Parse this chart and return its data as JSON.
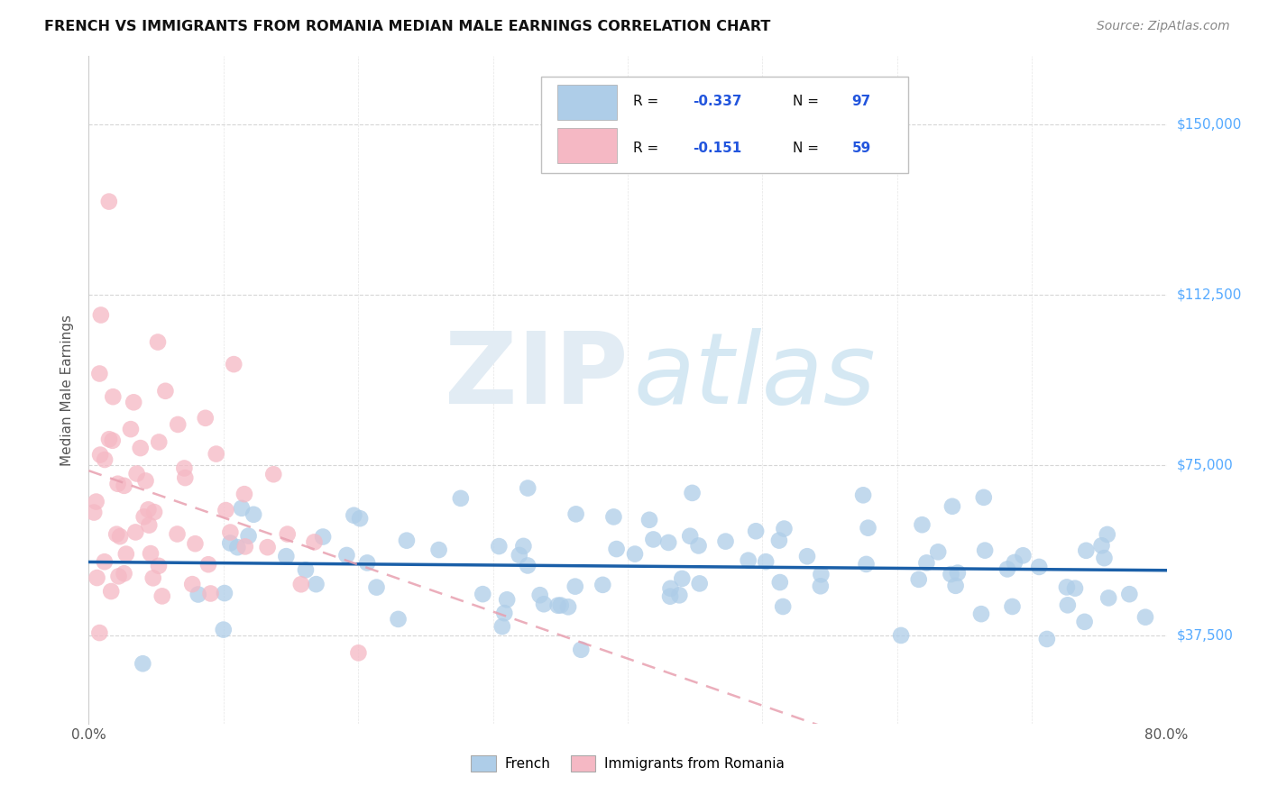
{
  "title": "FRENCH VS IMMIGRANTS FROM ROMANIA MEDIAN MALE EARNINGS CORRELATION CHART",
  "source": "Source: ZipAtlas.com",
  "ylabel": "Median Male Earnings",
  "xlim": [
    0.0,
    0.8
  ],
  "ylim": [
    18000,
    165000
  ],
  "yticks": [
    37500,
    75000,
    112500,
    150000
  ],
  "ytick_labels": [
    "$37,500",
    "$75,000",
    "$112,500",
    "$150,000"
  ],
  "xtick_positions": [
    0.0,
    0.1,
    0.2,
    0.3,
    0.4,
    0.5,
    0.6,
    0.7,
    0.8
  ],
  "xtick_labels": [
    "0.0%",
    "",
    "",
    "",
    "",
    "",
    "",
    "",
    "80.0%"
  ],
  "legend_r_french": "-0.337",
  "legend_n_french": "97",
  "legend_r_romania": "-0.151",
  "legend_n_romania": "59",
  "french_color": "#aecde8",
  "romania_color": "#f5b8c4",
  "french_line_color": "#1a5fa8",
  "romania_line_color": "#e8a0b0",
  "background_color": "#ffffff",
  "watermark_zip_color": "#dde8f0",
  "watermark_atlas_color": "#ccdce8",
  "grid_color": "#cccccc",
  "right_label_color": "#55aaff",
  "title_color": "#111111",
  "source_color": "#888888",
  "legend_text_color": "#111111",
  "legend_num_color": "#2255dd"
}
